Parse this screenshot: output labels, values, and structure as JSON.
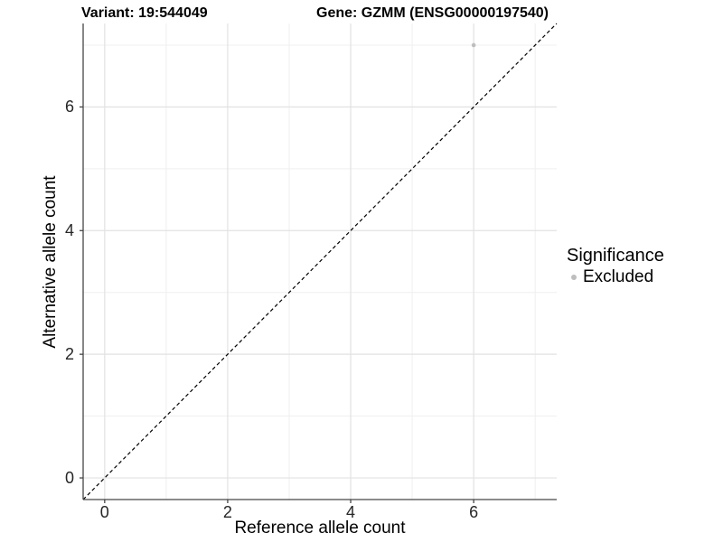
{
  "titles": {
    "variant": "Variant: 19:544049",
    "gene": "Gene: GZMM (ENSG00000197540)"
  },
  "axes": {
    "x": {
      "label": "Reference allele count"
    },
    "y": {
      "label": "Alternative allele count"
    }
  },
  "legend": {
    "title": "Significance",
    "items": [
      {
        "label": "Excluded",
        "color": "#bebebe"
      }
    ]
  },
  "colors": {
    "background": "#ffffff",
    "grid_major": "#e2e2e2",
    "grid_minor": "#efefef",
    "axis_line": "#464646",
    "tick_text": "#262626",
    "reference_line": "#000000",
    "excluded_point": "#bebebe"
  },
  "chart_data": {
    "type": "scatter",
    "title_left": "Variant: 19:544049",
    "title_right": "Gene: GZMM (ENSG00000197540)",
    "xlabel": "Reference allele count",
    "ylabel": "Alternative allele count",
    "xlim": [
      -0.35,
      7.35
    ],
    "ylim": [
      -0.35,
      7.35
    ],
    "x_ticks": [
      0,
      2,
      4,
      6
    ],
    "y_ticks": [
      0,
      2,
      4,
      6
    ],
    "x_minor_ticks": [
      1,
      3,
      5,
      7
    ],
    "y_minor_ticks": [
      1,
      3,
      5,
      7
    ],
    "grid": "major+minor",
    "legend_position": "right",
    "series": [
      {
        "name": "Excluded",
        "color": "#bebebe",
        "points": [
          [
            6,
            7
          ]
        ]
      }
    ],
    "reference_line": {
      "slope": 1,
      "intercept": 0,
      "style": "dashed",
      "color": "#000000"
    }
  }
}
